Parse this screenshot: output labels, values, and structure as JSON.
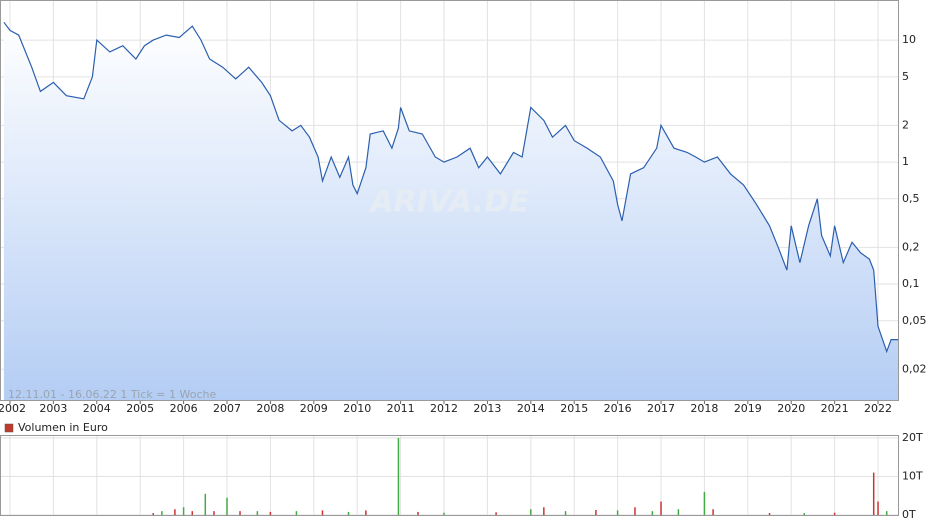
{
  "chart_data": [
    {
      "type": "line",
      "color": "#2b5fae",
      "log_scale": true,
      "grid": true,
      "annotation": "12.11.01 - 16.06.22   1 Tick = 1 Woche",
      "watermark": "ARIVA.DE",
      "x": [
        2001.86,
        2002.0,
        2002.2,
        2002.5,
        2002.7,
        2003.0,
        2003.3,
        2003.7,
        2003.9,
        2004.0,
        2004.3,
        2004.6,
        2004.9,
        2005.1,
        2005.3,
        2005.6,
        2005.9,
        2006.2,
        2006.4,
        2006.6,
        2006.9,
        2007.2,
        2007.5,
        2007.8,
        2008.0,
        2008.2,
        2008.5,
        2008.7,
        2008.9,
        2009.1,
        2009.2,
        2009.4,
        2009.6,
        2009.8,
        2009.9,
        2010.0,
        2010.2,
        2010.3,
        2010.6,
        2010.8,
        2010.95,
        2011.0,
        2011.2,
        2011.5,
        2011.8,
        2012.0,
        2012.3,
        2012.6,
        2012.8,
        2013.0,
        2013.3,
        2013.6,
        2013.8,
        2014.0,
        2014.3,
        2014.5,
        2014.8,
        2015.0,
        2015.3,
        2015.6,
        2015.9,
        2016.0,
        2016.1,
        2016.3,
        2016.6,
        2016.9,
        2017.0,
        2017.3,
        2017.6,
        2017.8,
        2018.0,
        2018.3,
        2018.6,
        2018.9,
        2019.2,
        2019.5,
        2019.7,
        2019.9,
        2020.0,
        2020.2,
        2020.4,
        2020.6,
        2020.7,
        2020.9,
        2021.0,
        2021.2,
        2021.4,
        2021.6,
        2021.8,
        2021.9,
        2022.0,
        2022.2,
        2022.3,
        2022.46
      ],
      "values": [
        14,
        12,
        11,
        6,
        3.8,
        4.5,
        3.5,
        3.3,
        5,
        10,
        8,
        9,
        7,
        9,
        10,
        11,
        10.5,
        13,
        10,
        7,
        6,
        4.8,
        6,
        4.5,
        3.5,
        2.2,
        1.8,
        2,
        1.6,
        1.1,
        0.7,
        1.1,
        0.75,
        1.1,
        0.65,
        0.55,
        0.9,
        1.7,
        1.8,
        1.3,
        1.9,
        2.8,
        1.8,
        1.7,
        1.1,
        1.0,
        1.1,
        1.3,
        0.9,
        1.1,
        0.8,
        1.2,
        1.1,
        2.8,
        2.2,
        1.6,
        2,
        1.5,
        1.3,
        1.1,
        0.7,
        0.45,
        0.33,
        0.8,
        0.9,
        1.3,
        2,
        1.3,
        1.2,
        1.1,
        1.0,
        1.1,
        0.8,
        0.65,
        0.45,
        0.3,
        0.2,
        0.13,
        0.3,
        0.15,
        0.3,
        0.5,
        0.25,
        0.17,
        0.3,
        0.15,
        0.22,
        0.18,
        0.16,
        0.13,
        0.045,
        0.028,
        0.035,
        0.035
      ],
      "xlim": [
        2001.77,
        2022.46
      ],
      "xticks": [
        2002,
        2003,
        2004,
        2005,
        2006,
        2007,
        2008,
        2009,
        2010,
        2011,
        2012,
        2013,
        2014,
        2015,
        2016,
        2017,
        2018,
        2019,
        2020,
        2021,
        2022
      ],
      "ylim": [
        0.0112,
        19.4
      ],
      "yticks": [
        10,
        5,
        2,
        1,
        {
          "value": 0.5,
          "label": "0,5"
        },
        {
          "value": 0.2,
          "label": "0,2"
        },
        {
          "value": 0.1,
          "label": "0,1"
        },
        {
          "value": 0.05,
          "label": "0,05"
        },
        {
          "value": 0.02,
          "label": "0,02"
        }
      ]
    },
    {
      "type": "bar",
      "name": "Volumen in Euro",
      "color": "#c0392b",
      "x": [
        2005.3,
        2005.5,
        2005.8,
        2006.0,
        2006.2,
        2006.5,
        2006.7,
        2007.0,
        2007.3,
        2007.7,
        2008.0,
        2008.6,
        2009.2,
        2009.8,
        2010.2,
        2010.95,
        2011.4,
        2012.0,
        2013.2,
        2014.0,
        2014.3,
        2014.8,
        2015.5,
        2016.0,
        2016.4,
        2016.8,
        2017.0,
        2017.4,
        2018.0,
        2018.2,
        2019.5,
        2020.3,
        2021.0,
        2021.9,
        2022.0,
        2022.2
      ],
      "values": [
        0.5,
        1,
        1.5,
        2,
        1,
        5.5,
        1,
        4.5,
        1,
        1,
        0.8,
        1,
        1.2,
        0.8,
        1.2,
        20,
        0.8,
        0.6,
        0.7,
        1.5,
        2,
        1,
        1.3,
        1.2,
        2,
        1,
        3.5,
        1.5,
        6,
        1.5,
        0.5,
        0.5,
        0.6,
        11,
        3.5,
        1
      ],
      "colors": [
        "#cc3333",
        "#44aa44",
        "#cc3333",
        "#44aa44",
        "#cc3333",
        "#44aa44",
        "#cc3333",
        "#44aa44",
        "#cc3333",
        "#44aa44",
        "#cc3333",
        "#44aa44",
        "#cc3333",
        "#44aa44",
        "#cc3333",
        "#44aa44",
        "#cc3333",
        "#44aa44",
        "#cc3333",
        "#44aa44",
        "#cc3333",
        "#44aa44",
        "#cc3333",
        "#44aa44",
        "#cc3333",
        "#44aa44",
        "#cc3333",
        "#44aa44",
        "#44aa44",
        "#cc3333",
        "#cc3333",
        "#44aa44",
        "#cc3333",
        "#cc3333",
        "#cc3333",
        "#44aa44"
      ],
      "xlim": [
        2001.77,
        2022.46
      ],
      "ylim": [
        0,
        20.5
      ],
      "yticks": [
        {
          "value": 20,
          "label": "20T"
        },
        {
          "value": 10,
          "label": "10T"
        },
        {
          "value": 0,
          "label": "0T"
        }
      ]
    }
  ]
}
